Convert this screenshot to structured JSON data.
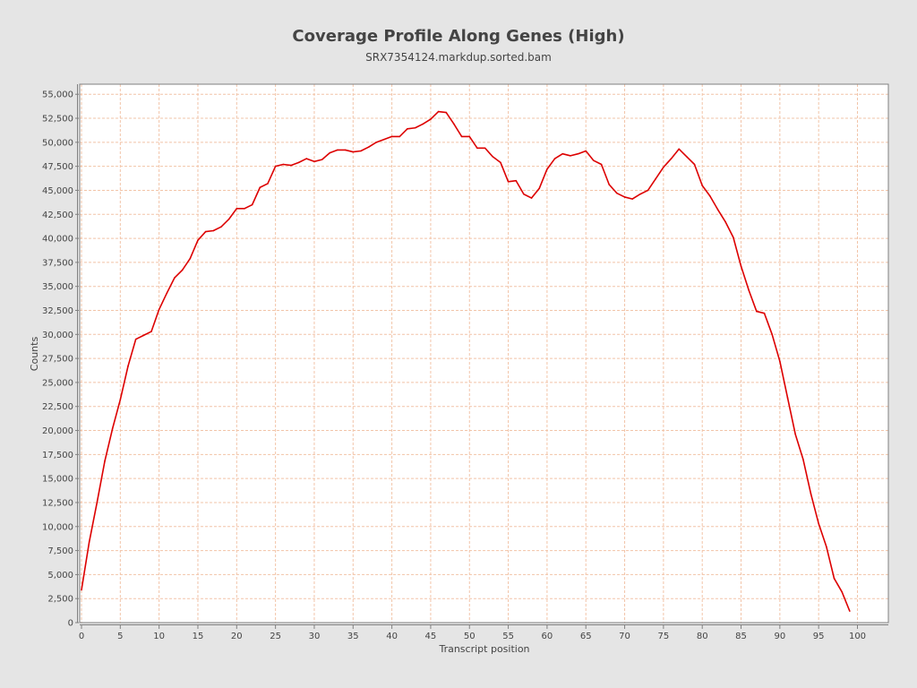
{
  "chart_data": {
    "type": "line",
    "title": "Coverage Profile Along Genes (High)",
    "subtitle": "SRX7354124.markdup.sorted.bam",
    "xlabel": "Transcript position",
    "ylabel": "Counts",
    "xlim": [
      0,
      104
    ],
    "ylim": [
      0,
      56000
    ],
    "x_ticks": [
      0,
      5,
      10,
      15,
      20,
      25,
      30,
      35,
      40,
      45,
      50,
      55,
      60,
      65,
      70,
      75,
      80,
      85,
      90,
      95,
      100
    ],
    "y_ticks": [
      0,
      2500,
      5000,
      7500,
      10000,
      12500,
      15000,
      17500,
      20000,
      22500,
      25000,
      27500,
      30000,
      32500,
      35000,
      37500,
      40000,
      42500,
      45000,
      47500,
      50000,
      52500,
      55000
    ],
    "y_tick_labels": [
      "0",
      "2,500",
      "5,000",
      "7,500",
      "10,000",
      "12,500",
      "15,000",
      "17,500",
      "20,000",
      "22,500",
      "25,000",
      "27,500",
      "30,000",
      "32,500",
      "35,000",
      "37,500",
      "40,000",
      "42,500",
      "45,000",
      "47,500",
      "50,000",
      "52,500",
      "55,000"
    ],
    "grid": true,
    "line_color": "#dd0000",
    "grid_color": "#f2c4a8",
    "series": [
      {
        "x": [
          0,
          1,
          2,
          3,
          4,
          5,
          6,
          7,
          8,
          9,
          10,
          11,
          12,
          13,
          14,
          15,
          16,
          17,
          18,
          19,
          20,
          21,
          22,
          23,
          24,
          25,
          26,
          27,
          28,
          29,
          30,
          31,
          32,
          33,
          34,
          35,
          36,
          37,
          38,
          39,
          40,
          41,
          42,
          43,
          44,
          45,
          46,
          47,
          48,
          49,
          50,
          51,
          52,
          53,
          54,
          55,
          56,
          57,
          58,
          59,
          60,
          61,
          62,
          63,
          64,
          65,
          66,
          67,
          68,
          69,
          70,
          71,
          72,
          73,
          74,
          75,
          76,
          77,
          78,
          79,
          80,
          81,
          82,
          83,
          84,
          85,
          86,
          87,
          88,
          89,
          90,
          91,
          92,
          93,
          94,
          95,
          96,
          97,
          98,
          99
        ],
        "values": [
          3400,
          8400,
          12500,
          16800,
          20200,
          23200,
          26700,
          29500,
          29900,
          30300,
          32600,
          34300,
          35900,
          36700,
          37900,
          39800,
          40700,
          40800,
          41200,
          42000,
          43100,
          43100,
          43500,
          45300,
          45700,
          47500,
          47700,
          47600,
          47900,
          48300,
          48000,
          48200,
          48900,
          49200,
          49200,
          49000,
          49100,
          49500,
          50000,
          50300,
          50600,
          50600,
          51400,
          51500,
          51900,
          52400,
          53200,
          53100,
          51900,
          50600,
          50600,
          49400,
          49400,
          48500,
          47900,
          45900,
          46000,
          44600,
          44200,
          45200,
          47200,
          48300,
          48800,
          48600,
          48800,
          49100,
          48100,
          47700,
          45600,
          44700,
          44300,
          44100,
          44600,
          45000,
          46200,
          47400,
          48300,
          49300,
          48500,
          47700,
          45500,
          44400,
          43000,
          41700,
          40100,
          37100,
          34600,
          32400,
          32200,
          30000,
          27200,
          23400,
          19600,
          17000,
          13400,
          10300,
          7900,
          4600,
          3200,
          1200
        ]
      }
    ]
  }
}
